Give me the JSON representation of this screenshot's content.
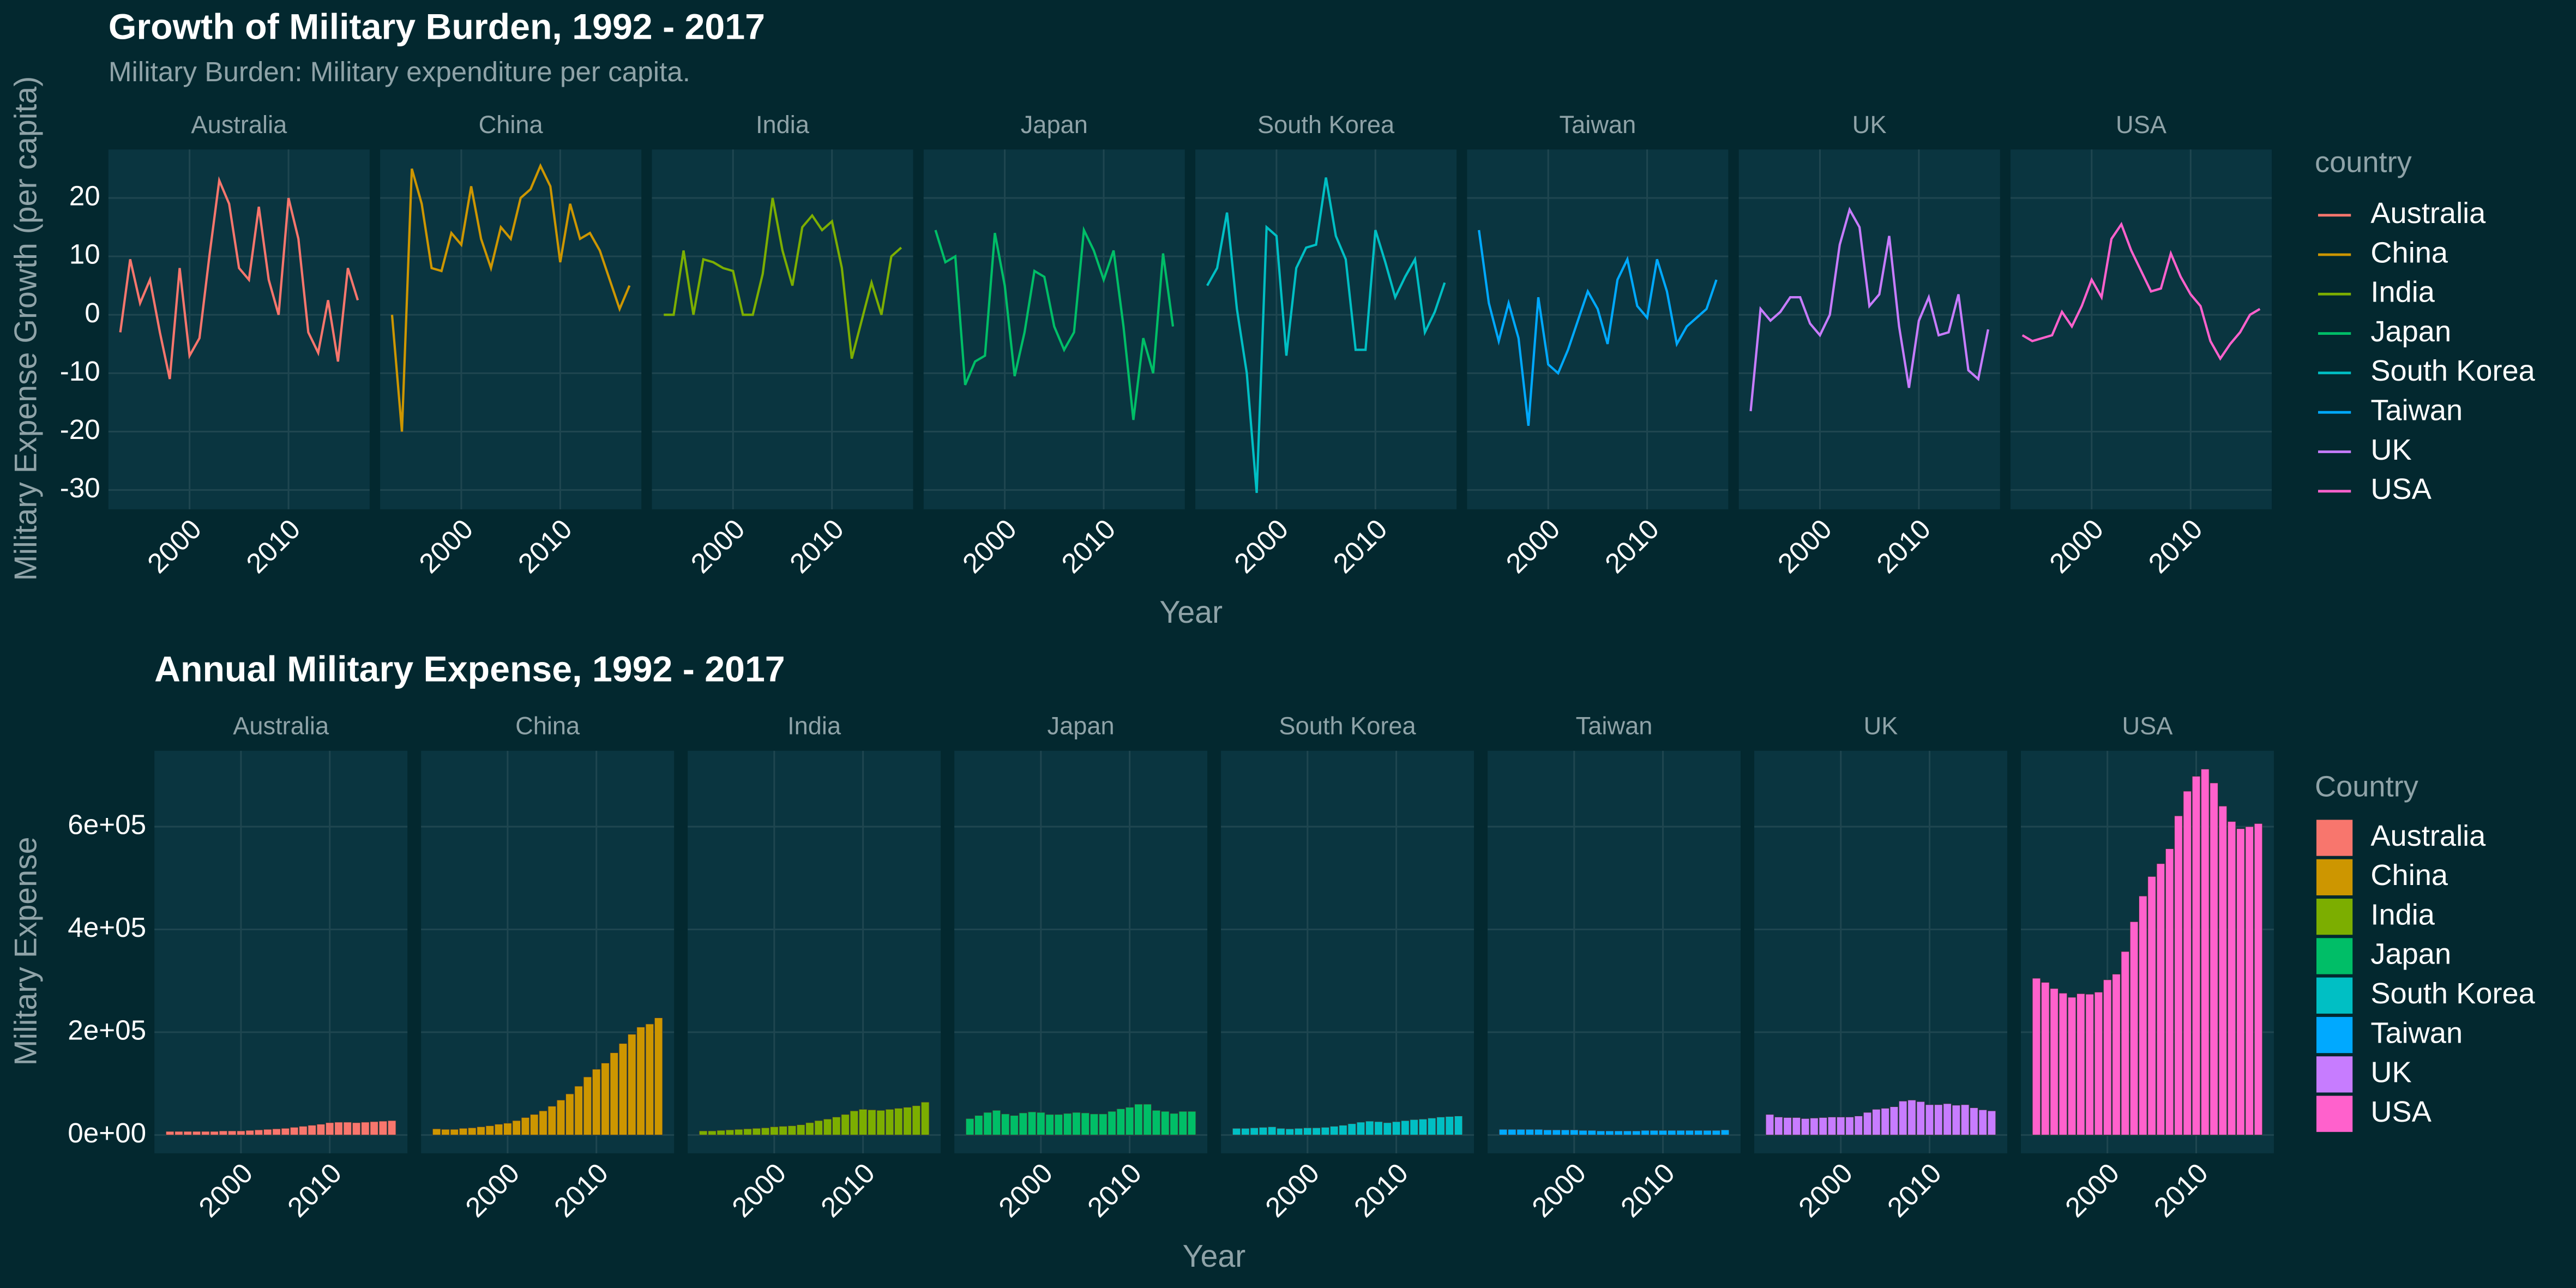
{
  "chart_data": [
    {
      "type": "line",
      "title": "Growth of Military Burden, 1992 - 2017",
      "subtitle": "Military Burden: Military expenditure per capita.",
      "x_label": "Year",
      "y_label": "Military Expense Growth (per capita)",
      "legend_title": "country",
      "x": [
        1993,
        1994,
        1995,
        1996,
        1997,
        1998,
        1999,
        2000,
        2001,
        2002,
        2003,
        2004,
        2005,
        2006,
        2007,
        2008,
        2009,
        2010,
        2011,
        2012,
        2013,
        2014,
        2015,
        2016,
        2017
      ],
      "xlim": [
        1991.8,
        2018.2
      ],
      "xticks": [
        2000,
        2010
      ],
      "ylim": [
        -33.3,
        28.3
      ],
      "yticks": [
        -30,
        -20,
        -10,
        0,
        10,
        20
      ],
      "grid": true,
      "series": [
        {
          "name": "Australia",
          "color": "#F8766D",
          "values": [
            -3,
            9.5,
            2,
            6,
            -3,
            -11,
            8,
            -7,
            -4,
            10,
            23,
            19,
            8,
            6,
            18.5,
            6,
            0,
            20,
            13,
            -3,
            -6.5,
            2.5,
            -8,
            8,
            2.5
          ]
        },
        {
          "name": "China",
          "color": "#CD9600",
          "values": [
            0,
            -20,
            25,
            19,
            8,
            7.5,
            14,
            12,
            22,
            13,
            8,
            15,
            13,
            20,
            21.5,
            25.5,
            22,
            9,
            19,
            13,
            14,
            11,
            6,
            1,
            5
          ]
        },
        {
          "name": "India",
          "color": "#7CAE00",
          "values": [
            0,
            0,
            11,
            0,
            9.5,
            9,
            8,
            7.5,
            0,
            0,
            7,
            20,
            11,
            5,
            15,
            17,
            14.5,
            16,
            8,
            -7.5,
            -1,
            5.5,
            0,
            10,
            11.5
          ]
        },
        {
          "name": "Japan",
          "color": "#00BE67",
          "values": [
            14.5,
            9,
            10,
            -12,
            -8,
            -7,
            14,
            5,
            -10.5,
            -3,
            7.5,
            6.5,
            -2,
            -6,
            -3,
            14.5,
            11,
            6,
            11,
            -2,
            -18,
            -4,
            -10,
            10.5,
            -2
          ]
        },
        {
          "name": "South Korea",
          "color": "#00BFC4",
          "values": [
            5,
            8,
            17.5,
            1,
            -10,
            -30.5,
            15,
            13.5,
            -7,
            8,
            11.5,
            12,
            23.5,
            13.5,
            9.5,
            -6,
            -6,
            14.5,
            9,
            3,
            6.5,
            9.5,
            -3,
            0.5,
            5.5
          ]
        },
        {
          "name": "Taiwan",
          "color": "#00A9FF",
          "values": [
            14.5,
            2,
            -4.5,
            2,
            -4,
            -19,
            3,
            -8.5,
            -10,
            -6,
            -1,
            4,
            1,
            -5,
            6,
            9.5,
            1.5,
            -0.5,
            9.5,
            4,
            -5,
            -2,
            -0.5,
            1,
            6
          ]
        },
        {
          "name": "UK",
          "color": "#C77CFF",
          "values": [
            -16.5,
            1,
            -1,
            0.5,
            3,
            3,
            -1.5,
            -3.5,
            0,
            12,
            18,
            15,
            1.5,
            3.5,
            13.5,
            -2,
            -12.5,
            -1,
            3,
            -3.5,
            -3,
            3.5,
            -9.5,
            -11,
            -2.5
          ]
        },
        {
          "name": "USA",
          "color": "#FF61CC",
          "values": [
            -3.5,
            -4.5,
            -4,
            -3.5,
            0.5,
            -2,
            1.5,
            6,
            3,
            13,
            15.5,
            11,
            7.5,
            4,
            4.5,
            10.5,
            6.5,
            3.5,
            1.5,
            -4.5,
            -7.5,
            -5,
            -3,
            0,
            1
          ]
        }
      ]
    },
    {
      "type": "bar",
      "title": "Annual Military Expense, 1992 - 2017",
      "x_label": "Year",
      "y_label": "Military Expense",
      "legend_title": "Country",
      "x": [
        1992,
        1993,
        1994,
        1995,
        1996,
        1997,
        1998,
        1999,
        2000,
        2001,
        2002,
        2003,
        2004,
        2005,
        2006,
        2007,
        2008,
        2009,
        2010,
        2011,
        2012,
        2013,
        2014,
        2015,
        2016,
        2017
      ],
      "xlim": [
        1990.25,
        2018.75
      ],
      "xticks": [
        2000,
        2010
      ],
      "ylim": [
        -35600,
        747600
      ],
      "yticks": [
        {
          "value": 0,
          "label": "0e+00"
        },
        {
          "value": 200000,
          "label": "2e+05"
        },
        {
          "value": 400000,
          "label": "4e+05"
        },
        {
          "value": 600000,
          "label": "6e+05"
        }
      ],
      "grid": true,
      "series": [
        {
          "name": "Australia",
          "color": "#F8766D",
          "values": [
            7000,
            7000,
            7000,
            7000,
            7000,
            7000,
            8000,
            8000,
            8000,
            9000,
            10000,
            11000,
            12000,
            13000,
            15000,
            17000,
            19000,
            21000,
            24000,
            25000,
            25000,
            24000,
            25000,
            26000,
            27000,
            28000
          ]
        },
        {
          "name": "China",
          "color": "#CD9600",
          "values": [
            12000,
            11000,
            11000,
            13000,
            14000,
            16000,
            18000,
            21000,
            23000,
            28000,
            34000,
            40000,
            47000,
            56000,
            68000,
            80000,
            95000,
            113000,
            128000,
            140000,
            160000,
            178000,
            196000,
            210000,
            216000,
            228000
          ]
        },
        {
          "name": "India",
          "color": "#7CAE00",
          "values": [
            8000,
            8000,
            9000,
            10000,
            11000,
            12000,
            13000,
            14000,
            16000,
            17000,
            18000,
            20000,
            24000,
            28000,
            31000,
            35000,
            40000,
            47000,
            50000,
            49000,
            48000,
            50000,
            52000,
            54000,
            57000,
            64000
          ]
        },
        {
          "name": "Japan",
          "color": "#00BE67",
          "values": [
            32000,
            38000,
            44000,
            48000,
            41000,
            38000,
            43000,
            45000,
            44000,
            40000,
            40000,
            42000,
            44000,
            43000,
            41000,
            41000,
            46000,
            51000,
            54000,
            60000,
            60000,
            48000,
            46000,
            42000,
            46000,
            46000
          ]
        },
        {
          "name": "South Korea",
          "color": "#00BFC4",
          "values": [
            13000,
            13000,
            14000,
            15000,
            16000,
            13000,
            12000,
            13000,
            14000,
            14000,
            15000,
            17000,
            19000,
            22000,
            25000,
            27000,
            26000,
            24000,
            26000,
            28000,
            30000,
            31000,
            33000,
            35000,
            36000,
            37000
          ]
        },
        {
          "name": "Taiwan",
          "color": "#00A9FF",
          "values": [
            11000,
            11000,
            11000,
            11000,
            11000,
            10000,
            10000,
            10000,
            10000,
            9000,
            9000,
            8000,
            8000,
            8000,
            8000,
            8000,
            9000,
            9000,
            9000,
            9000,
            9000,
            9000,
            9000,
            9000,
            9000,
            10000
          ]
        },
        {
          "name": "UK",
          "color": "#C77CFF",
          "values": [
            40000,
            35000,
            34000,
            34000,
            32000,
            33000,
            34000,
            35000,
            35000,
            35000,
            37000,
            44000,
            50000,
            52000,
            55000,
            66000,
            68000,
            65000,
            59000,
            59000,
            61000,
            58000,
            59000,
            53000,
            49000,
            47000
          ]
        },
        {
          "name": "USA",
          "color": "#FF61CC",
          "values": [
            305000,
            297000,
            285000,
            276000,
            268000,
            275000,
            274000,
            278000,
            302000,
            313000,
            357000,
            415000,
            465000,
            503000,
            528000,
            557000,
            621000,
            669000,
            698000,
            712000,
            685000,
            640000,
            610000,
            596000,
            600000,
            606000
          ]
        }
      ]
    }
  ]
}
